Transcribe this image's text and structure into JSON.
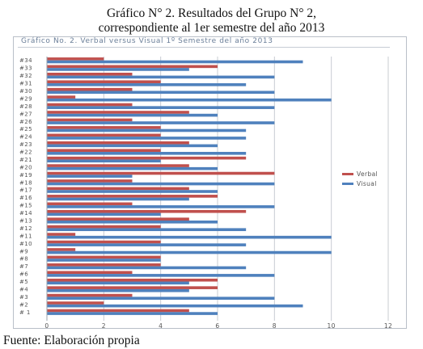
{
  "header": {
    "title_line1": "Gráfico N° 2. Resultados del Grupo N° 2,",
    "title_line2": "correspondiente al 1er semestre del año 2013"
  },
  "footer": {
    "source": "Fuente: Elaboración propia"
  },
  "chart_data": {
    "type": "bar",
    "orientation": "horizontal",
    "title": "Gráfico No. 2. Verbal versus Visual 1º Semestre del año 2013",
    "categories": [
      "# 1",
      "#2",
      "#3",
      "#4",
      "#5",
      "#6",
      "#7",
      "#8",
      "#9",
      "#10",
      "#11",
      "#12",
      "#13",
      "#14",
      "#15",
      "#16",
      "#17",
      "#18",
      "#19",
      "#20",
      "#21",
      "#22",
      "#23",
      "#24",
      "#25",
      "#26",
      "#27",
      "#28",
      "#29",
      "#30",
      "#31",
      "#32",
      "#33",
      "#34"
    ],
    "series": [
      {
        "name": "Verbal",
        "color": "#c0504d",
        "values": [
          5,
          2,
          3,
          6,
          6,
          3,
          4,
          4,
          1,
          4,
          1,
          4,
          5,
          7,
          3,
          6,
          5,
          3,
          8,
          5,
          7,
          4,
          5,
          4,
          4,
          3,
          5,
          3,
          1,
          3,
          4,
          3,
          6,
          2
        ]
      },
      {
        "name": "Visual",
        "color": "#4f81bd",
        "values": [
          6,
          9,
          8,
          5,
          5,
          8,
          7,
          4,
          10,
          7,
          10,
          7,
          6,
          4,
          8,
          5,
          6,
          8,
          3,
          6,
          4,
          7,
          6,
          7,
          7,
          8,
          6,
          8,
          10,
          8,
          7,
          8,
          5,
          9
        ]
      }
    ],
    "xlim": [
      0,
      12
    ],
    "xticks": [
      0,
      2,
      4,
      6,
      8,
      10,
      12
    ],
    "xtick_labels": [
      "0",
      "2",
      "4",
      "6",
      "8",
      "10",
      "12"
    ],
    "grid": "vertical",
    "legend_position": "right"
  }
}
